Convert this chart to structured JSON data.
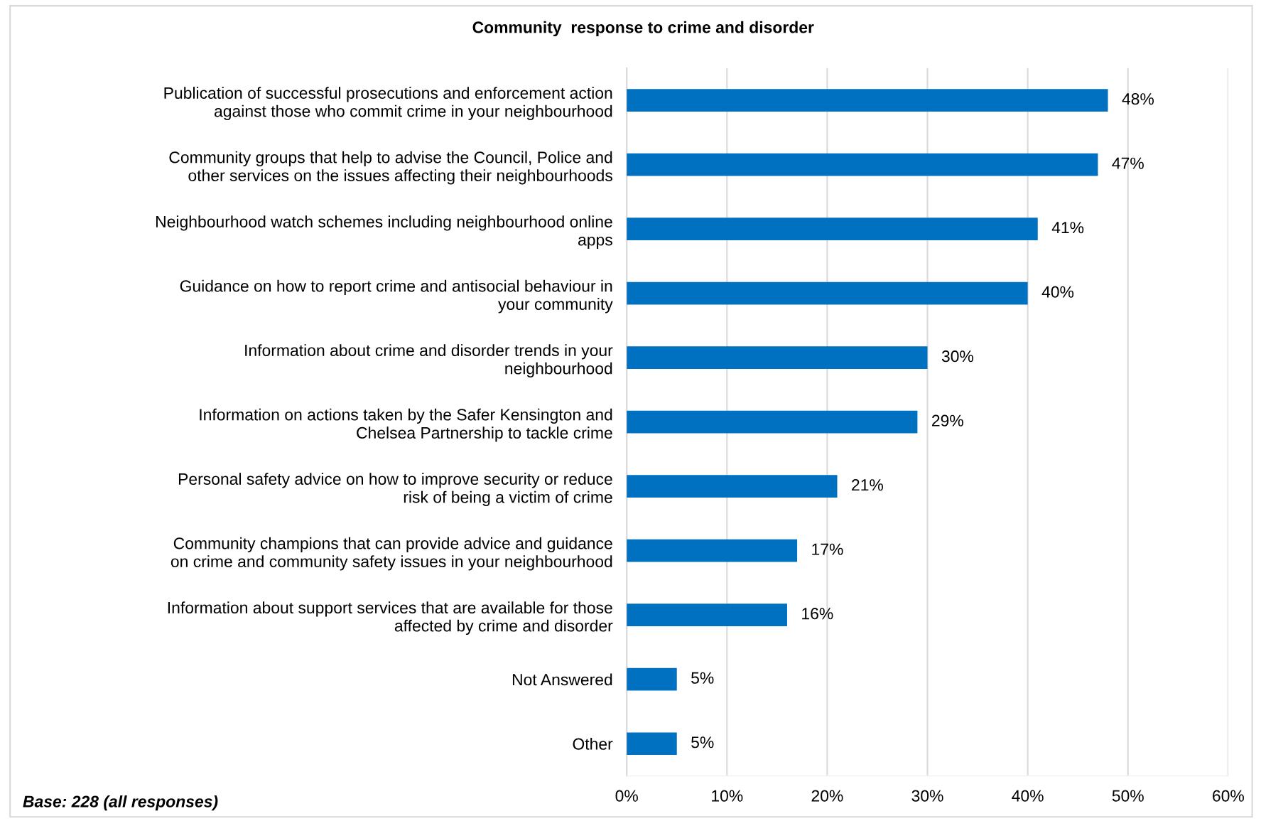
{
  "chart_data": {
    "type": "bar",
    "orientation": "horizontal",
    "title": "Community  response to crime and disorder",
    "categories": [
      "Publication of successful prosecutions and enforcement action\nagainst those who commit crime in your neighbourhood",
      "Community groups that help to advise the Council, Police and\nother services on the issues affecting their neighbourhoods",
      "Neighbourhood watch schemes including neighbourhood online\napps",
      "Guidance on how to report crime and antisocial behaviour in\nyour community",
      "Information about crime and disorder trends in your\nneighbourhood",
      "Information on actions taken by the Safer Kensington and\nChelsea Partnership to tackle crime",
      "Personal safety advice on how to improve security or reduce\nrisk of being a victim of crime",
      "Community champions that can provide advice and guidance\non crime and community safety issues in your neighbourhood",
      "Information about support services that are available for those\naffected by crime and disorder",
      "Not Answered",
      "Other"
    ],
    "values": [
      48,
      47,
      41,
      40,
      30,
      29,
      21,
      17,
      16,
      5,
      5
    ],
    "value_labels": [
      "48%",
      "47%",
      "41%",
      "40%",
      "30%",
      "29%",
      "21%",
      "17%",
      "16%",
      "5%",
      "5%"
    ],
    "color": "#0070c0",
    "xlim": [
      0,
      60
    ],
    "xticks": [
      {
        "value": 0,
        "label": "0%"
      },
      {
        "value": 10,
        "label": "10%"
      },
      {
        "value": 20,
        "label": "20%"
      },
      {
        "value": 30,
        "label": "30%"
      },
      {
        "value": 40,
        "label": "40%"
      },
      {
        "value": 50,
        "label": "50%"
      },
      {
        "value": 60,
        "label": "60%"
      }
    ],
    "grid": "x",
    "legend": false,
    "annotations": [
      "Base: 228 (all responses)"
    ]
  }
}
